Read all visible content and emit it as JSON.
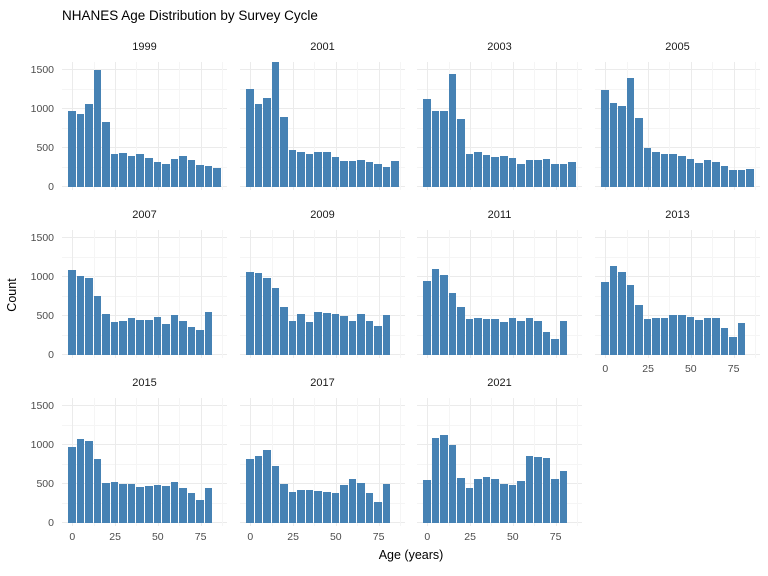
{
  "title": "NHANES Age Distribution by Survey Cycle",
  "axes": {
    "x_title": "Age (years)",
    "y_title": "Count"
  },
  "colors": {
    "bar": "#4682B4",
    "grid_major": "#EBEBEB",
    "grid_minor": "#F5F5F5",
    "tick_label": "#4D4D4D",
    "strip_label": "#1A1A1A",
    "background": "#FFFFFF"
  },
  "chart_data": {
    "type": "bar",
    "subtype": "faceted-histogram",
    "title": "NHANES Age Distribution by Survey Cycle",
    "xlabel": "Age (years)",
    "ylabel": "Count",
    "ylim": [
      0,
      1600
    ],
    "x_ticks": [
      0,
      25,
      50,
      75
    ],
    "y_ticks": [
      0,
      500,
      1000,
      1500
    ],
    "y_minor_ticks": [
      250,
      750,
      1250
    ],
    "x_minor_ticks": [
      12.5,
      37.5,
      62.5,
      87.5
    ],
    "grid": true,
    "legend": false,
    "bin_width": 5,
    "bin_centers_start": 0,
    "facet_columns": 4,
    "facets": [
      {
        "year": "1999",
        "counts": [
          980,
          930,
          1060,
          1500,
          830,
          420,
          430,
          400,
          425,
          375,
          320,
          290,
          360,
          395,
          340,
          285,
          270,
          240
        ]
      },
      {
        "year": "2001",
        "counts": [
          1260,
          1070,
          1140,
          1600,
          900,
          470,
          450,
          425,
          450,
          455,
          390,
          330,
          335,
          340,
          320,
          290,
          260,
          330
        ]
      },
      {
        "year": "2003",
        "counts": [
          1130,
          970,
          975,
          1450,
          870,
          420,
          445,
          410,
          390,
          400,
          370,
          300,
          340,
          350,
          360,
          300,
          290,
          320
        ]
      },
      {
        "year": "2005",
        "counts": [
          1240,
          1075,
          1040,
          1400,
          880,
          500,
          455,
          425,
          425,
          400,
          360,
          310,
          340,
          320,
          270,
          220,
          215,
          235
        ]
      },
      {
        "year": "2007",
        "counts": [
          1090,
          1010,
          985,
          760,
          530,
          420,
          435,
          470,
          455,
          455,
          490,
          400,
          510,
          430,
          360,
          320,
          550
        ]
      },
      {
        "year": "2009",
        "counts": [
          1060,
          1055,
          990,
          855,
          620,
          435,
          530,
          425,
          555,
          545,
          520,
          495,
          440,
          525,
          430,
          370,
          510
        ]
      },
      {
        "year": "2011",
        "counts": [
          950,
          1100,
          1030,
          790,
          620,
          460,
          480,
          465,
          460,
          420,
          470,
          440,
          480,
          430,
          300,
          210,
          440
        ]
      },
      {
        "year": "2013",
        "counts": [
          935,
          1145,
          1060,
          895,
          640,
          460,
          475,
          475,
          515,
          515,
          490,
          455,
          470,
          475,
          345,
          230,
          410
        ]
      },
      {
        "year": "2015",
        "counts": [
          970,
          1080,
          1050,
          820,
          510,
          520,
          500,
          505,
          465,
          480,
          485,
          470,
          520,
          450,
          390,
          300,
          450
        ]
      },
      {
        "year": "2017",
        "counts": [
          820,
          860,
          930,
          730,
          500,
          400,
          420,
          420,
          410,
          395,
          390,
          490,
          570,
          510,
          390,
          275,
          500
        ]
      },
      {
        "year": "2021",
        "counts": [
          550,
          1090,
          1130,
          1000,
          580,
          450,
          570,
          590,
          565,
          500,
          485,
          545,
          860,
          850,
          830,
          560,
          670
        ]
      }
    ]
  }
}
